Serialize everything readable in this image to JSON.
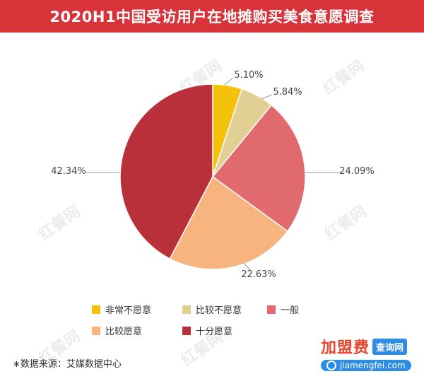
{
  "title": "2020H1中国受访用户在地摊购买美食意愿调查",
  "watermark_text": "红餐网",
  "chart_data": {
    "type": "pie",
    "title": "2020H1中国受访用户在地摊购买美食意愿调查",
    "slices": [
      {
        "label": "非常不愿意",
        "value": 5.1,
        "display": "5.10%",
        "color": "#f5c20b"
      },
      {
        "label": "比较不愿意",
        "value": 5.84,
        "display": "5.84%",
        "color": "#e2cf93"
      },
      {
        "label": "一般",
        "value": 24.09,
        "display": "24.09%",
        "color": "#e06a6e"
      },
      {
        "label": "比较愿意",
        "value": 22.63,
        "display": "22.63%",
        "color": "#f8b47e"
      },
      {
        "label": "十分愿意",
        "value": 42.34,
        "display": "42.34%",
        "color": "#b9303a"
      }
    ],
    "legend_placement": "bottom"
  },
  "source_note": "∗数据来源：艾媒数据中心",
  "brand": {
    "main": "加盟费",
    "tag": "查询网",
    "url": "jiamengfei.com"
  }
}
